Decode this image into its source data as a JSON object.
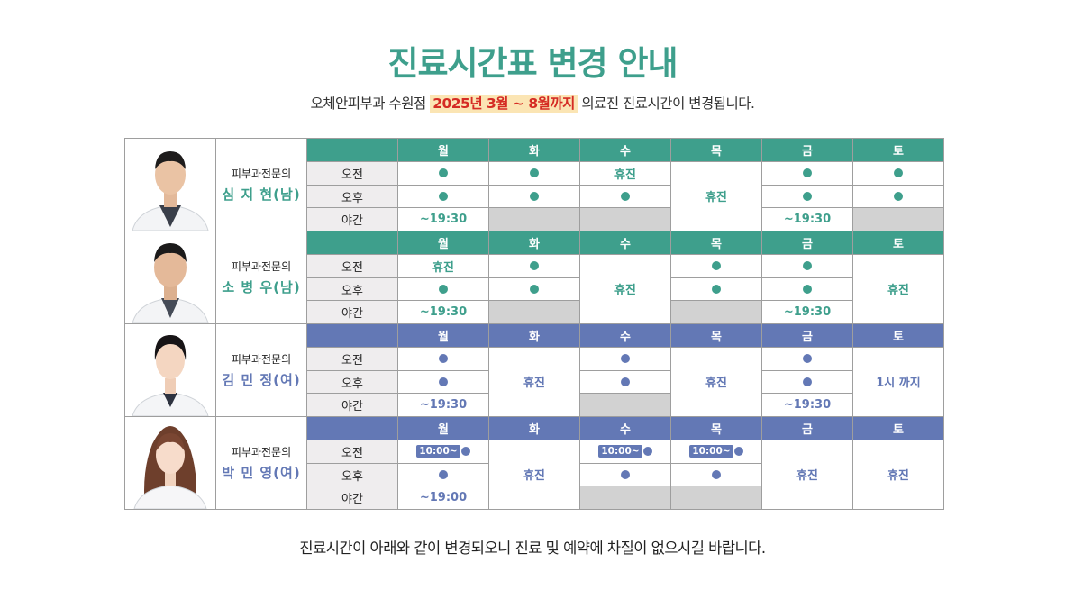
{
  "title": "진료시간표 변경 안내",
  "subtitle": {
    "before": "오체안피부과 수원점 ",
    "highlight": "2025년 3월 ~ 8월까지",
    "after": " 의료진 진료시간이 변경됩니다."
  },
  "footer": "진료시간이 아래와 같이 변경되오니 진료 및 예약에 차질이 없으시길 바랍니다.",
  "days": [
    "월",
    "화",
    "수",
    "목",
    "금",
    "토"
  ],
  "time_labels": [
    "오전",
    "오후",
    "야간"
  ],
  "colors": {
    "green": "#3e9f8c",
    "blue": "#6378b5",
    "gray": "#d2d2d2",
    "highlight_text": "#d52c24",
    "highlight_bg": "#fbe5b4"
  },
  "doctors": [
    {
      "specialty": "피부과전문의",
      "name": "심 지 현(남)",
      "theme": "green",
      "photo_icon": "doctor-male-photo",
      "labels": {
        "closed": "휴진",
        "night_mon": "~19:30",
        "night_fri": "~19:30"
      }
    },
    {
      "specialty": "피부과전문의",
      "name": "소 병 우(남)",
      "theme": "green",
      "photo_icon": "doctor-male-photo",
      "labels": {
        "mon_am": "휴진",
        "wed_closed": "휴진",
        "sat_closed": "휴진",
        "night_mon": "~19:30",
        "night_fri": "~19:30"
      }
    },
    {
      "specialty": "피부과전문의",
      "name": "김 민 정(여)",
      "theme": "blue",
      "photo_icon": "doctor-female-photo",
      "labels": {
        "tue_closed": "휴진",
        "thu_closed": "휴진",
        "sat": "1시 까지",
        "night_mon": "~19:30",
        "night_fri": "~19:30"
      }
    },
    {
      "specialty": "피부과전문의",
      "name": "박 민 영(여)",
      "theme": "blue",
      "photo_icon": "doctor-female-photo",
      "labels": {
        "badge": "10:00~",
        "tue_closed": "휴진",
        "fri_closed": "휴진",
        "sat_closed": "휴진",
        "night_mon": "~19:00"
      }
    }
  ]
}
